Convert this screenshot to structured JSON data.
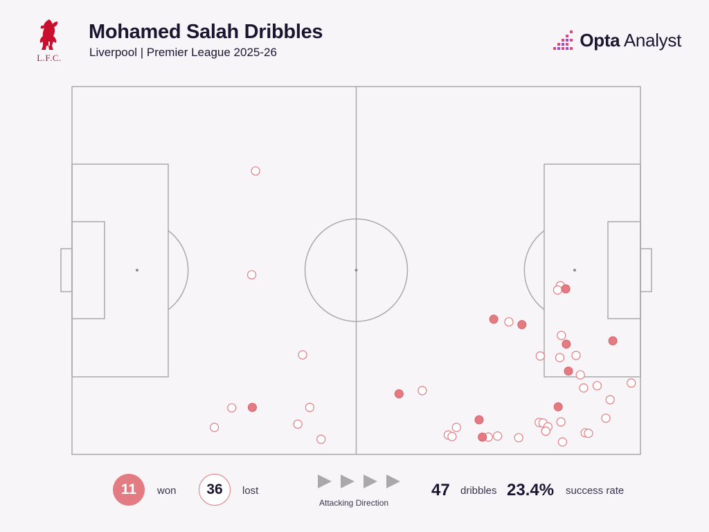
{
  "header": {
    "title": "Mohamed Salah Dribbles",
    "subtitle": "Liverpool | Premier League 2025-26",
    "club_logo_text": "L.F.C.",
    "brand_bold": "Opta",
    "brand_light": " Analyst"
  },
  "legend": {
    "won_count": "11",
    "won_label": "won",
    "lost_count": "36",
    "lost_label": "lost",
    "attack_label": "Attacking Direction"
  },
  "stats": {
    "dribbles_value": "47",
    "dribbles_label": "dribbles",
    "rate_value": "23.4%",
    "rate_label": "success rate"
  },
  "colors": {
    "accent": "#e37b82",
    "background": "#f8f5f8",
    "pitch_lines": "#a9a9a9",
    "text": "#1c1530"
  },
  "chart_data": {
    "type": "scatter",
    "title": "Mohamed Salah Dribbles",
    "xlim": [
      0,
      105
    ],
    "ylim": [
      0,
      68
    ],
    "attacking_direction": "left-to-right",
    "series": [
      {
        "name": "won",
        "points": [
          [
            33.3,
            8.7
          ],
          [
            60.4,
            11.2
          ],
          [
            75.2,
            6.4
          ],
          [
            75.8,
            3.2
          ],
          [
            77.9,
            25.0
          ],
          [
            83.1,
            24.0
          ],
          [
            89.8,
            8.8
          ],
          [
            91.2,
            30.6
          ],
          [
            91.3,
            20.4
          ],
          [
            91.7,
            15.4
          ],
          [
            99.9,
            21.0
          ]
        ]
      },
      {
        "name": "lost",
        "points": [
          [
            33.9,
            52.4
          ],
          [
            33.2,
            33.2
          ],
          [
            42.6,
            18.4
          ],
          [
            29.5,
            8.6
          ],
          [
            26.3,
            5.0
          ],
          [
            41.7,
            5.6
          ],
          [
            43.9,
            8.7
          ],
          [
            46.0,
            2.8
          ],
          [
            64.7,
            11.8
          ],
          [
            69.5,
            3.6
          ],
          [
            70.2,
            3.3
          ],
          [
            71.0,
            5.0
          ],
          [
            76.9,
            3.2
          ],
          [
            78.6,
            3.4
          ],
          [
            82.5,
            3.1
          ],
          [
            80.7,
            24.5
          ],
          [
            86.5,
            18.2
          ],
          [
            90.3,
            6.0
          ],
          [
            90.2,
            31.2
          ],
          [
            89.7,
            30.4
          ],
          [
            90.4,
            22.0
          ],
          [
            90.1,
            17.9
          ],
          [
            93.1,
            18.3
          ],
          [
            94.5,
            12.3
          ],
          [
            93.9,
            14.7
          ],
          [
            97.0,
            12.7
          ],
          [
            99.4,
            10.1
          ],
          [
            98.6,
            6.7
          ],
          [
            94.8,
            4.0
          ],
          [
            86.3,
            5.9
          ],
          [
            87.0,
            5.8
          ],
          [
            87.9,
            5.1
          ],
          [
            87.5,
            4.3
          ],
          [
            90.6,
            2.3
          ],
          [
            95.4,
            3.9
          ],
          [
            103.3,
            13.2
          ]
        ]
      }
    ],
    "summary": {
      "total": 47,
      "won": 11,
      "lost": 36,
      "success_rate_pct": 23.4
    }
  }
}
